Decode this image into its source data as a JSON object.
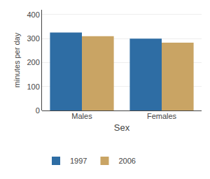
{
  "chart_data": {
    "type": "bar",
    "categories": [
      "Males",
      "Females"
    ],
    "series": [
      {
        "name": "1997",
        "color": "#2e6da4",
        "values": [
          325,
          300
        ]
      },
      {
        "name": "2006",
        "color": "#c9a464",
        "values": [
          310,
          283
        ]
      }
    ],
    "xlabel": "Sex",
    "ylabel": "minutes per day",
    "ylim": [
      0,
      420
    ],
    "yticks": [
      0,
      100,
      200,
      300,
      400
    ],
    "grid": true,
    "legend": "lower left"
  }
}
